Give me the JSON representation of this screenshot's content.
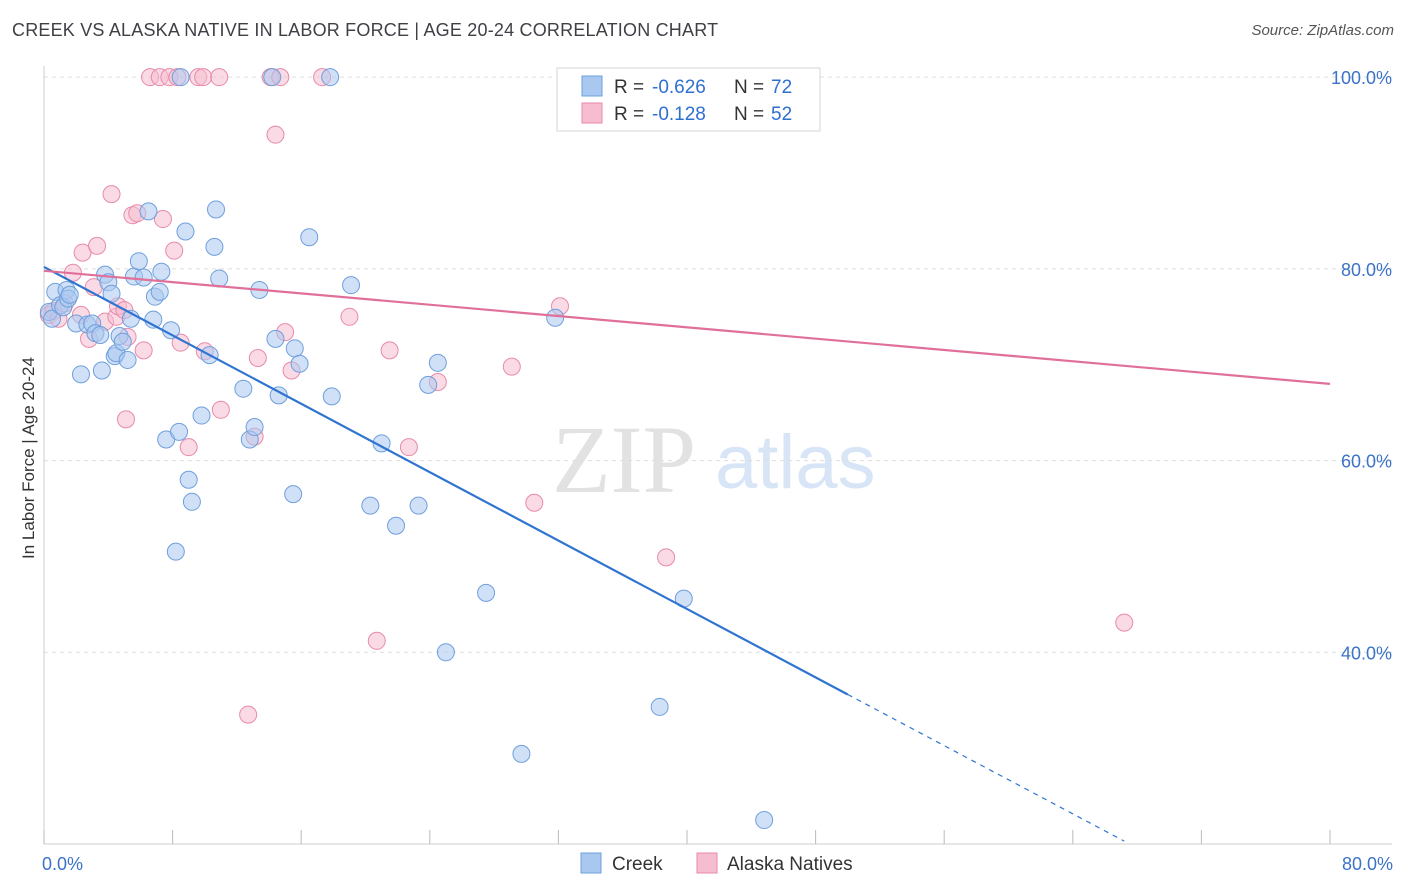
{
  "header": {
    "title": "CREEK VS ALASKA NATIVE IN LABOR FORCE | AGE 20-24 CORRELATION CHART",
    "source": "Source: ZipAtlas.com"
  },
  "watermark": {
    "zip": "ZIP",
    "atlas": "atlas"
  },
  "legend_box": {
    "rows": [
      {
        "r_label": "R =",
        "r_value": "-0.626",
        "n_label": "N =",
        "n_value": "72"
      },
      {
        "r_label": "R =",
        "r_value": "-0.128",
        "n_label": "N =",
        "n_value": "52"
      }
    ]
  },
  "colors": {
    "creek_fill": "#a9c8f0",
    "creek_stroke": "#6f9fdc",
    "creek_line": "#2f74d0",
    "alaska_fill": "#f6bdd0",
    "alaska_stroke": "#e88aa9",
    "alaska_line": "#e0709a",
    "tick_blue": "#3b73c8",
    "grid": "#dddddd"
  },
  "chart_data": {
    "type": "scatter",
    "xlabel": "",
    "ylabel": "In Labor Force | Age 20-24",
    "xlim": [
      0,
      80
    ],
    "ylim": [
      20,
      102
    ],
    "x_tick_labels": [
      "0.0%",
      "80.0%"
    ],
    "y_ticks": [
      40,
      60,
      80,
      100
    ],
    "y_tick_labels": [
      "40.0%",
      "60.0%",
      "80.0%",
      "100.0%"
    ],
    "grid": true,
    "legend_position": "bottom-center",
    "series": [
      {
        "name": "Creek",
        "r": -0.626,
        "n": 72,
        "trend": {
          "x1": 0,
          "y1": 80.2,
          "x2": 50,
          "y2": 35.6,
          "dash_to_x": 67.2,
          "dash_to_y": 20.3
        },
        "points": [
          [
            0.3,
            75.5
          ],
          [
            0.5,
            74.8
          ],
          [
            0.7,
            77.6
          ],
          [
            1.0,
            76.2
          ],
          [
            1.2,
            76.0
          ],
          [
            1.4,
            77.8
          ],
          [
            1.5,
            76.9
          ],
          [
            1.6,
            77.3
          ],
          [
            2.0,
            74.3
          ],
          [
            2.3,
            69.0
          ],
          [
            2.7,
            74.2
          ],
          [
            3.0,
            74.3
          ],
          [
            3.2,
            73.3
          ],
          [
            3.5,
            73.1
          ],
          [
            3.6,
            69.4
          ],
          [
            3.8,
            79.4
          ],
          [
            4.0,
            78.6
          ],
          [
            4.2,
            77.4
          ],
          [
            4.4,
            70.9
          ],
          [
            4.5,
            71.2
          ],
          [
            4.7,
            73.0
          ],
          [
            4.9,
            72.4
          ],
          [
            5.2,
            70.5
          ],
          [
            5.4,
            74.8
          ],
          [
            5.6,
            79.2
          ],
          [
            5.9,
            80.8
          ],
          [
            6.2,
            79.1
          ],
          [
            6.5,
            86.0
          ],
          [
            6.8,
            74.7
          ],
          [
            6.9,
            77.1
          ],
          [
            7.2,
            77.6
          ],
          [
            7.3,
            79.7
          ],
          [
            7.6,
            62.2
          ],
          [
            7.9,
            73.6
          ],
          [
            8.2,
            50.5
          ],
          [
            8.4,
            63.0
          ],
          [
            8.5,
            100.0
          ],
          [
            8.8,
            83.9
          ],
          [
            9.0,
            58.0
          ],
          [
            9.2,
            55.7
          ],
          [
            9.8,
            64.7
          ],
          [
            10.3,
            71.0
          ],
          [
            10.6,
            82.3
          ],
          [
            10.7,
            86.2
          ],
          [
            10.9,
            79.0
          ],
          [
            12.4,
            67.5
          ],
          [
            12.8,
            62.2
          ],
          [
            13.1,
            63.5
          ],
          [
            13.4,
            77.8
          ],
          [
            14.2,
            100.0
          ],
          [
            14.4,
            72.7
          ],
          [
            14.6,
            66.8
          ],
          [
            15.5,
            56.5
          ],
          [
            15.6,
            71.7
          ],
          [
            15.9,
            70.1
          ],
          [
            16.5,
            83.3
          ],
          [
            17.8,
            100.0
          ],
          [
            17.9,
            66.7
          ],
          [
            19.1,
            78.3
          ],
          [
            20.3,
            55.3
          ],
          [
            21.0,
            61.8
          ],
          [
            21.9,
            53.2
          ],
          [
            23.3,
            55.3
          ],
          [
            23.9,
            67.9
          ],
          [
            24.5,
            70.2
          ],
          [
            25.0,
            40.0
          ],
          [
            27.5,
            46.2
          ],
          [
            29.7,
            29.4
          ],
          [
            31.8,
            74.9
          ],
          [
            38.3,
            34.3
          ],
          [
            39.8,
            45.6
          ],
          [
            44.8,
            22.5
          ]
        ]
      },
      {
        "name": "Alaska Natives",
        "r": -0.128,
        "n": 52,
        "trend": {
          "x1": 0,
          "y1": 79.8,
          "x2": 80,
          "y2": 68.0
        },
        "points": [
          [
            0.3,
            75.2
          ],
          [
            0.6,
            75.6
          ],
          [
            0.9,
            74.8
          ],
          [
            1.3,
            76.4
          ],
          [
            1.8,
            79.6
          ],
          [
            2.3,
            75.2
          ],
          [
            2.4,
            81.7
          ],
          [
            2.8,
            72.7
          ],
          [
            3.1,
            78.1
          ],
          [
            3.3,
            82.4
          ],
          [
            3.8,
            74.5
          ],
          [
            4.2,
            87.8
          ],
          [
            4.5,
            75.0
          ],
          [
            4.6,
            76.1
          ],
          [
            5.0,
            75.7
          ],
          [
            5.1,
            64.3
          ],
          [
            5.2,
            72.9
          ],
          [
            5.5,
            85.6
          ],
          [
            5.8,
            85.8
          ],
          [
            6.2,
            71.5
          ],
          [
            6.6,
            100.0
          ],
          [
            7.2,
            100.0
          ],
          [
            7.4,
            85.2
          ],
          [
            7.8,
            100.0
          ],
          [
            8.1,
            81.9
          ],
          [
            8.3,
            100.0
          ],
          [
            8.5,
            72.3
          ],
          [
            9.0,
            61.4
          ],
          [
            9.6,
            100.0
          ],
          [
            9.9,
            100.0
          ],
          [
            10.0,
            71.4
          ],
          [
            10.9,
            100.0
          ],
          [
            11.0,
            65.3
          ],
          [
            12.7,
            33.5
          ],
          [
            13.1,
            62.5
          ],
          [
            13.3,
            70.7
          ],
          [
            14.1,
            100.0
          ],
          [
            14.4,
            94.0
          ],
          [
            14.7,
            100.0
          ],
          [
            15.0,
            73.4
          ],
          [
            15.4,
            69.4
          ],
          [
            17.3,
            100.0
          ],
          [
            19.0,
            75.0
          ],
          [
            20.7,
            41.2
          ],
          [
            21.5,
            71.5
          ],
          [
            22.7,
            61.4
          ],
          [
            24.5,
            68.2
          ],
          [
            29.1,
            69.8
          ],
          [
            30.5,
            55.6
          ],
          [
            32.1,
            76.1
          ],
          [
            38.7,
            49.9
          ],
          [
            67.2,
            43.1
          ]
        ]
      }
    ]
  }
}
